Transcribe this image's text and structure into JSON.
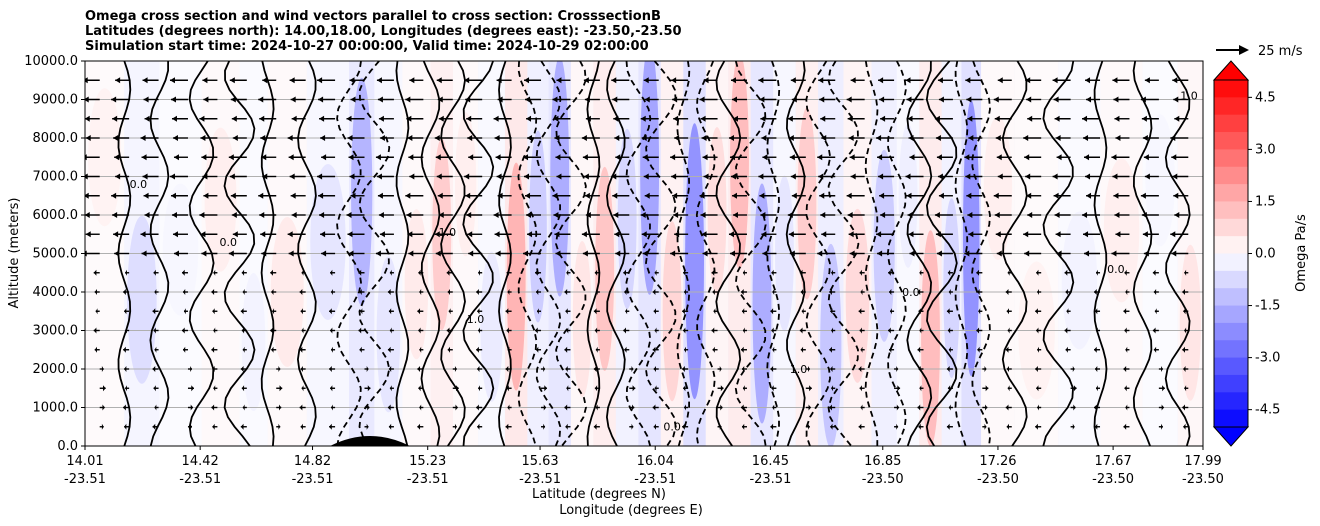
{
  "chart_data": {
    "type": "contourf",
    "title_lines": [
      "Omega cross section and wind vectors parallel to cross section: CrosssectionB",
      "Latitudes (degrees north): 14.00,18.00, Longitudes (degrees east): -23.50,-23.50",
      "Simulation start time: 2024-10-27 00:00:00, Valid time: 2024-10-29 02:00:00"
    ],
    "ylabel": "Altitude (meters)",
    "xlabel_lat": "Latitude (degrees N)",
    "xlabel_lon": "Longitude (degrees E)",
    "ylim": [
      0,
      10000
    ],
    "xlim": [
      14.01,
      17.99
    ],
    "yticks": [
      "0.0",
      "1000.0",
      "2000.0",
      "3000.0",
      "4000.0",
      "5000.0",
      "6000.0",
      "7000.0",
      "8000.0",
      "9000.0",
      "10000.0"
    ],
    "xticks": [
      {
        "lat": "14.01",
        "lon": "-23.51"
      },
      {
        "lat": "14.42",
        "lon": "-23.51"
      },
      {
        "lat": "14.82",
        "lon": "-23.51"
      },
      {
        "lat": "15.23",
        "lon": "-23.51"
      },
      {
        "lat": "15.63",
        "lon": "-23.51"
      },
      {
        "lat": "16.04",
        "lon": "-23.51"
      },
      {
        "lat": "16.45",
        "lon": "-23.51"
      },
      {
        "lat": "16.85",
        "lon": "-23.50"
      },
      {
        "lat": "17.26",
        "lon": "-23.50"
      },
      {
        "lat": "17.67",
        "lon": "-23.50"
      },
      {
        "lat": "17.99",
        "lon": "-23.50"
      }
    ],
    "colorbar": {
      "label": "Omega Pa/s",
      "range": [
        -5,
        5
      ],
      "ticks": [
        "-4.5",
        "-3.0",
        "-1.5",
        "0.0",
        "1.5",
        "3.0",
        "4.5"
      ],
      "extend": "both",
      "colormap": "bwr"
    },
    "vector_key": "25 m/s",
    "contour_levels": [
      -1.0,
      0.0,
      1.0
    ],
    "contour_labels": [
      "0.0",
      "0.0",
      "1.0",
      "1.0",
      "0.0",
      "1.0",
      "0.0",
      "0.0",
      "1.0"
    ],
    "omega_columns": [
      {
        "lat": 14.1,
        "omega": 0.3
      },
      {
        "lat": 14.2,
        "omega": -0.8
      },
      {
        "lat": 14.35,
        "omega": -0.2
      },
      {
        "lat": 14.5,
        "omega": 0.4
      },
      {
        "lat": 14.62,
        "omega": -0.3
      },
      {
        "lat": 14.7,
        "omega": 0.5
      },
      {
        "lat": 14.9,
        "omega": -0.6
      },
      {
        "lat": 15.0,
        "omega": -1.8
      },
      {
        "lat": 15.08,
        "omega": -0.6
      },
      {
        "lat": 15.2,
        "omega": 0.5
      },
      {
        "lat": 15.28,
        "omega": 1.2
      },
      {
        "lat": 15.36,
        "omega": 0.4
      },
      {
        "lat": 15.46,
        "omega": -0.5
      },
      {
        "lat": 15.55,
        "omega": 1.8
      },
      {
        "lat": 15.62,
        "omega": -1.2
      },
      {
        "lat": 15.7,
        "omega": -2.0
      },
      {
        "lat": 15.78,
        "omega": 0.6
      },
      {
        "lat": 15.86,
        "omega": 1.4
      },
      {
        "lat": 15.94,
        "omega": -1.0
      },
      {
        "lat": 16.02,
        "omega": -2.2
      },
      {
        "lat": 16.1,
        "omega": 1.0
      },
      {
        "lat": 16.18,
        "omega": -2.6
      },
      {
        "lat": 16.26,
        "omega": 0.8
      },
      {
        "lat": 16.34,
        "omega": 1.6
      },
      {
        "lat": 16.42,
        "omega": -2.0
      },
      {
        "lat": 16.5,
        "omega": -0.6
      },
      {
        "lat": 16.58,
        "omega": 1.2
      },
      {
        "lat": 16.66,
        "omega": -1.4
      },
      {
        "lat": 16.76,
        "omega": 0.9
      },
      {
        "lat": 16.86,
        "omega": -1.2
      },
      {
        "lat": 16.94,
        "omega": -0.4
      },
      {
        "lat": 17.02,
        "omega": 1.6
      },
      {
        "lat": 17.1,
        "omega": -1.0
      },
      {
        "lat": 17.16,
        "omega": -2.6
      },
      {
        "lat": 17.24,
        "omega": 0.4
      },
      {
        "lat": 17.4,
        "omega": 0.3
      },
      {
        "lat": 17.55,
        "omega": -0.3
      },
      {
        "lat": 17.7,
        "omega": 0.4
      },
      {
        "lat": 17.85,
        "omega": -0.2
      },
      {
        "lat": 17.95,
        "omega": 0.6
      }
    ]
  }
}
